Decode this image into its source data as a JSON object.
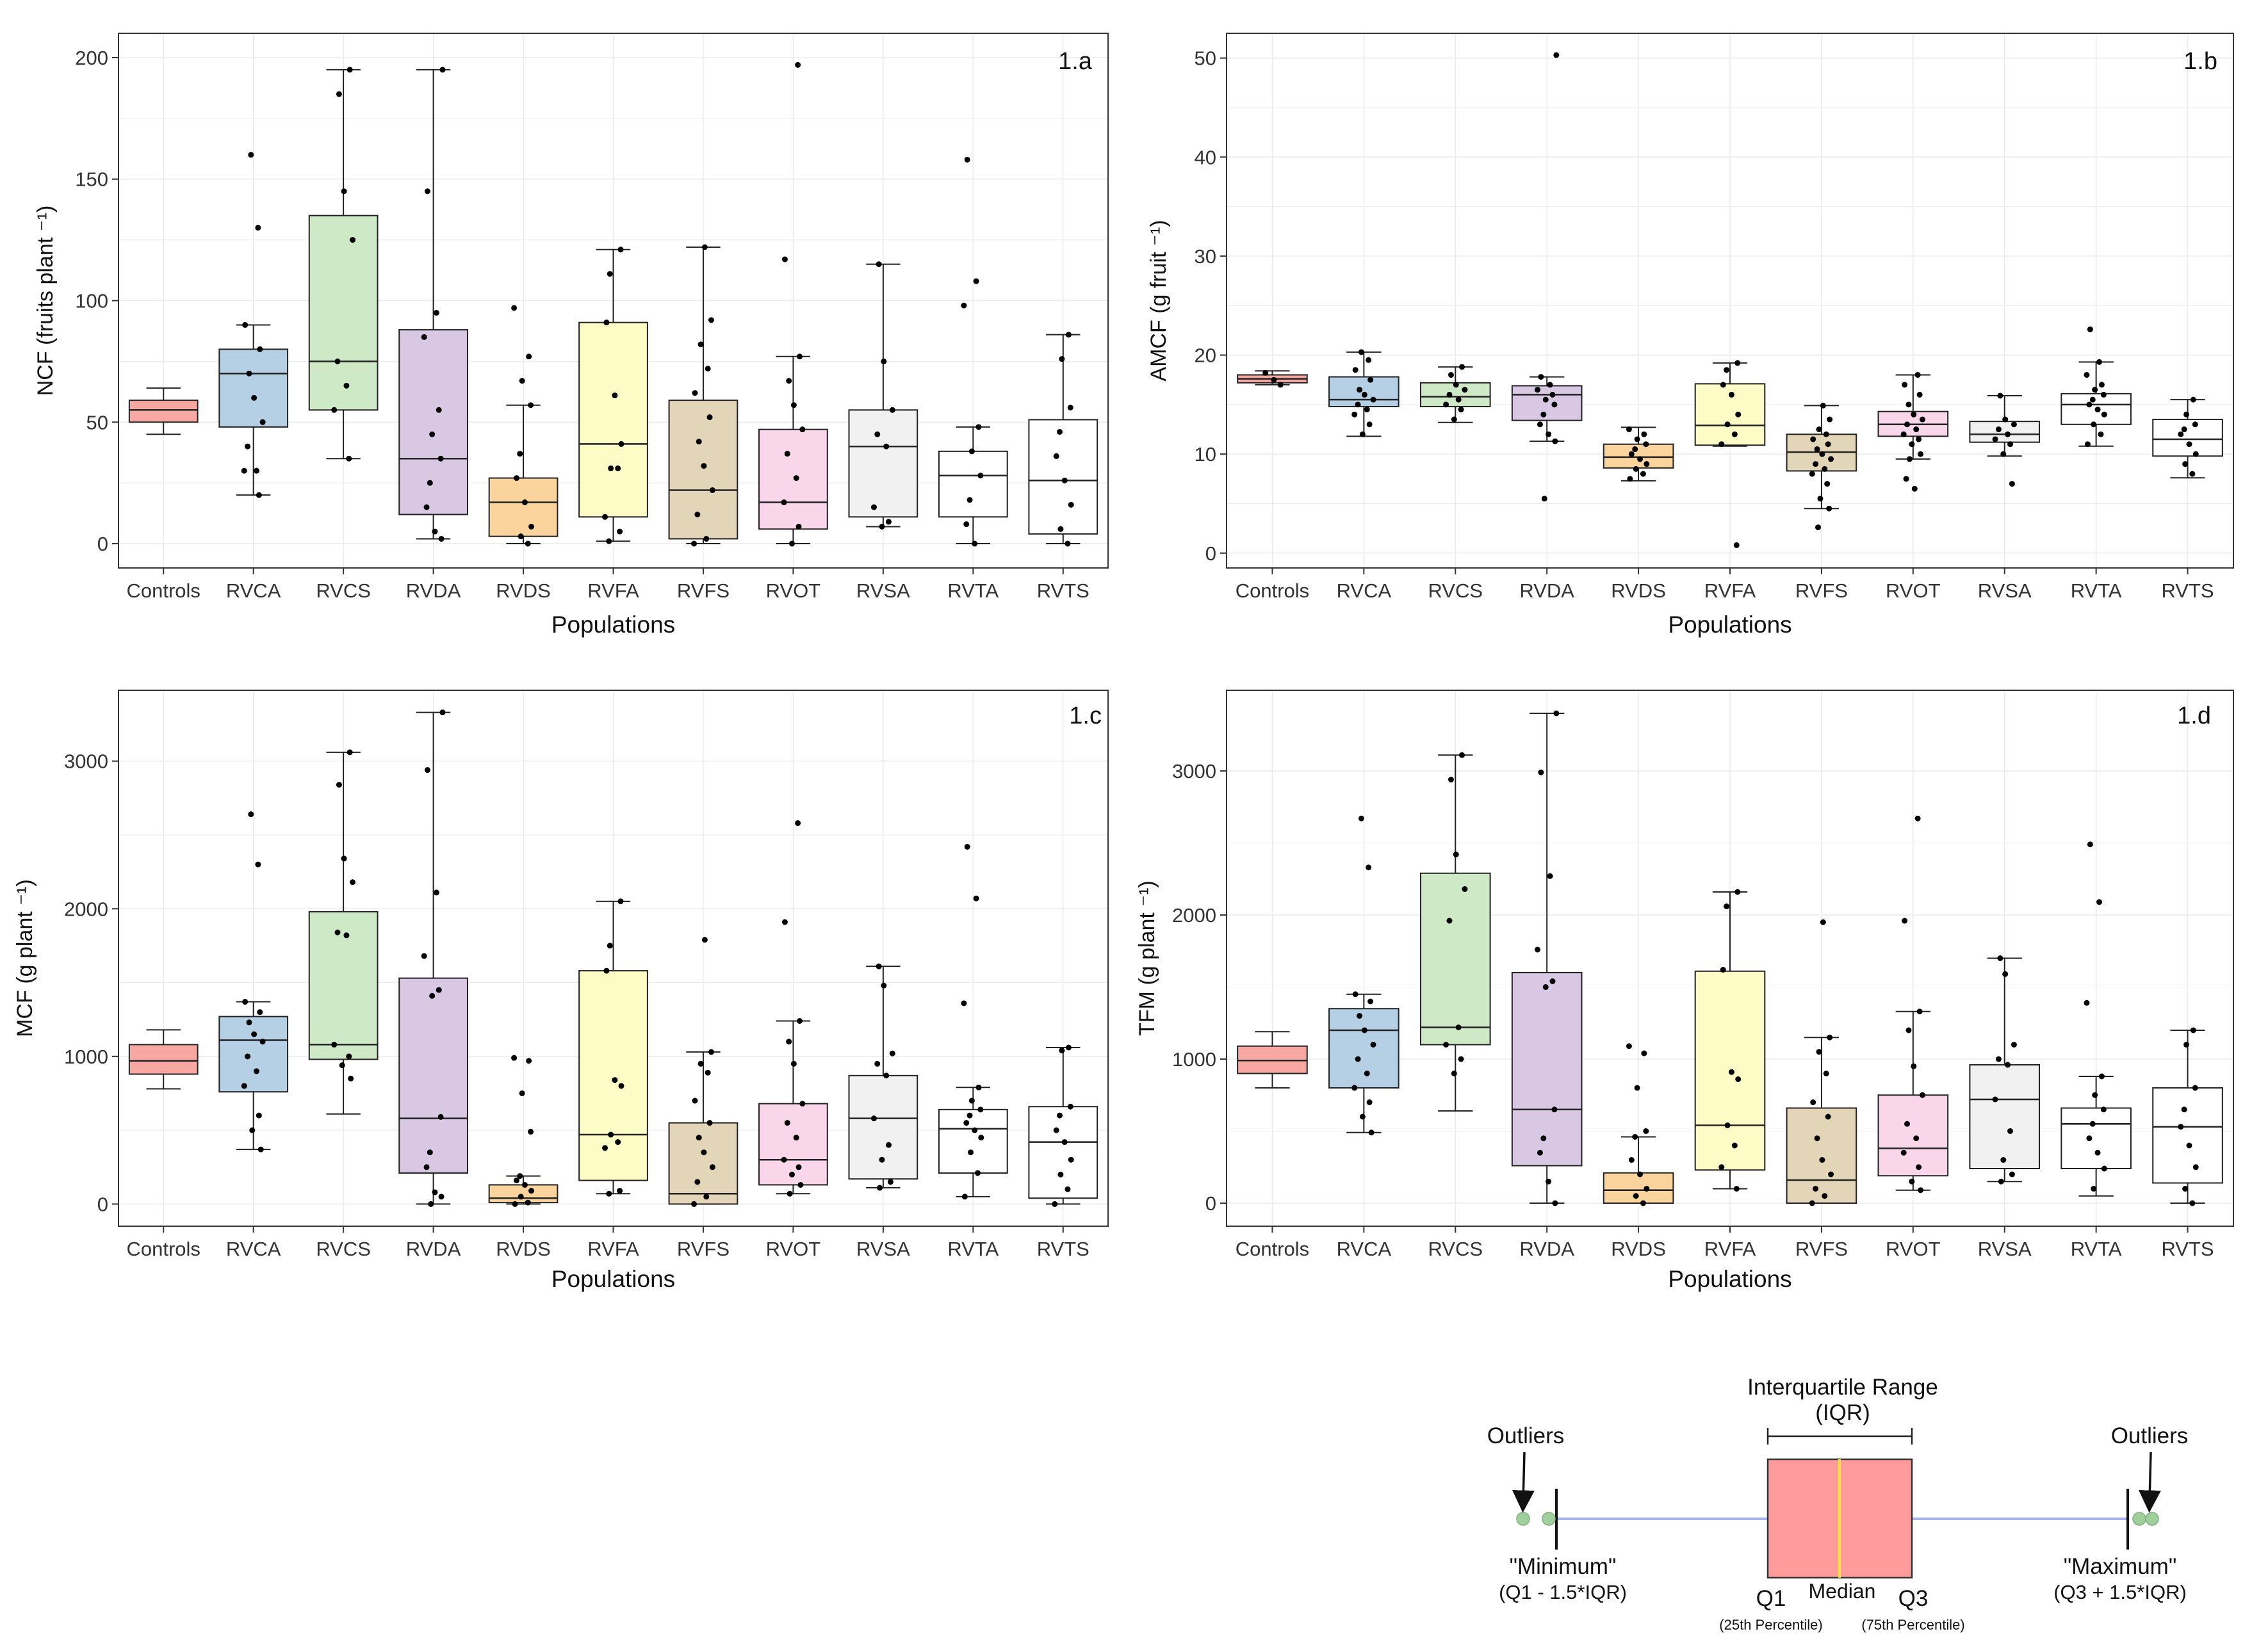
{
  "figure_title": "",
  "colors": {
    "Controls": "#f8a8a2",
    "RVCA": "#b5d0e5",
    "RVCS": "#cde9c6",
    "RVDA": "#d9c8e3",
    "RVDS": "#fbd39d",
    "RVFA": "#fdfcc7",
    "RVFS": "#e3d5b8",
    "RVOT": "#fad6ea",
    "RVSA": "#f1f1f1",
    "RVTA": "#ffffff",
    "RVTS": "#ffffff"
  },
  "chart_data": [
    {
      "id": "1.a",
      "type": "box",
      "panel_label": "1.a",
      "ylabel": "NCF (fruits plant ⁻¹)",
      "xlabel": "Populations",
      "ylim": [
        -10,
        210
      ],
      "yticks": [
        0,
        50,
        100,
        150,
        200
      ],
      "categories": [
        "Controls",
        "RVCA",
        "RVCS",
        "RVDA",
        "RVDS",
        "RVFA",
        "RVFS",
        "RVOT",
        "RVSA",
        "RVTA",
        "RVTS"
      ],
      "boxes": [
        {
          "min": 45,
          "q1": 50,
          "median": 55,
          "q3": 59,
          "max": 64,
          "points": []
        },
        {
          "min": 20,
          "q1": 48,
          "median": 70,
          "q3": 80,
          "max": 90,
          "points": [
            160,
            130,
            90,
            80,
            70,
            60,
            50,
            40,
            30,
            30,
            20
          ]
        },
        {
          "min": 35,
          "q1": 55,
          "median": 75,
          "q3": 135,
          "max": 195,
          "points": [
            195,
            185,
            145,
            125,
            75,
            65,
            55,
            35
          ]
        },
        {
          "min": 2,
          "q1": 12,
          "median": 35,
          "q3": 88,
          "max": 195,
          "points": [
            195,
            145,
            95,
            85,
            55,
            45,
            35,
            25,
            15,
            5,
            2
          ]
        },
        {
          "min": 0,
          "q1": 3,
          "median": 17,
          "q3": 27,
          "max": 57,
          "points": [
            97,
            77,
            67,
            57,
            37,
            27,
            17,
            7,
            3,
            0
          ]
        },
        {
          "min": 1,
          "q1": 11,
          "median": 41,
          "q3": 91,
          "max": 121,
          "points": [
            121,
            111,
            91,
            61,
            41,
            31,
            31,
            11,
            5,
            1
          ]
        },
        {
          "min": 0,
          "q1": 2,
          "median": 22,
          "q3": 59,
          "max": 122,
          "points": [
            122,
            92,
            82,
            72,
            62,
            52,
            42,
            32,
            22,
            12,
            2,
            0
          ]
        },
        {
          "min": 0,
          "q1": 6,
          "median": 17,
          "q3": 47,
          "max": 77,
          "points": [
            197,
            117,
            77,
            67,
            57,
            47,
            37,
            27,
            17,
            7,
            0
          ]
        },
        {
          "min": 7,
          "q1": 11,
          "median": 40,
          "q3": 55,
          "max": 115,
          "points": [
            115,
            75,
            55,
            45,
            40,
            15,
            9,
            7
          ]
        },
        {
          "min": 0,
          "q1": 11,
          "median": 28,
          "q3": 38,
          "max": 48,
          "points": [
            158,
            108,
            98,
            48,
            38,
            28,
            18,
            8,
            0
          ]
        },
        {
          "min": 0,
          "q1": 4,
          "median": 26,
          "q3": 51,
          "max": 86,
          "points": [
            86,
            76,
            56,
            46,
            36,
            26,
            16,
            6,
            0
          ]
        }
      ]
    },
    {
      "id": "1.b",
      "type": "box",
      "panel_label": "1.b",
      "ylabel": "AMCF (g fruit ⁻¹)",
      "xlabel": "Populations",
      "ylim": [
        -1.5,
        52.5
      ],
      "yticks": [
        0,
        10,
        20,
        30,
        40,
        50
      ],
      "categories": [
        "Controls",
        "RVCA",
        "RVCS",
        "RVDA",
        "RVDS",
        "RVFA",
        "RVFS",
        "RVOT",
        "RVSA",
        "RVTA",
        "RVTS"
      ],
      "boxes": [
        {
          "min": 17,
          "q1": 17.2,
          "median": 17.6,
          "q3": 18,
          "max": 18.4,
          "points": [
            18.2,
            17.5,
            17
          ]
        },
        {
          "min": 11.8,
          "q1": 14.8,
          "median": 15.5,
          "q3": 17.8,
          "max": 20.3,
          "points": [
            20.3,
            19.5,
            18.5,
            17.5,
            16.5,
            16,
            15.5,
            15,
            14.5,
            14,
            13,
            12
          ]
        },
        {
          "min": 13.2,
          "q1": 14.8,
          "median": 15.8,
          "q3": 17.2,
          "max": 18.8,
          "points": [
            18.8,
            18,
            17,
            16.5,
            16,
            15.5,
            15,
            14.5,
            13.5
          ]
        },
        {
          "min": 11.3,
          "q1": 13.4,
          "median": 16,
          "q3": 16.9,
          "max": 17.8,
          "points": [
            50.3,
            17.8,
            17,
            16.5,
            16,
            15.5,
            15,
            14,
            13,
            12,
            11.3,
            5.5
          ]
        },
        {
          "min": 7.3,
          "q1": 8.6,
          "median": 9.7,
          "q3": 11,
          "max": 12.7,
          "points": [
            12.5,
            12,
            11.5,
            11,
            10.5,
            10,
            9.5,
            9,
            8.5,
            8,
            7.5
          ]
        },
        {
          "min": 10.8,
          "q1": 10.9,
          "median": 12.9,
          "q3": 17.1,
          "max": 19.2,
          "points": [
            19.2,
            18.5,
            17,
            16,
            14,
            13,
            12,
            11,
            0.8
          ]
        },
        {
          "min": 4.5,
          "q1": 8.3,
          "median": 10.2,
          "q3": 12,
          "max": 14.9,
          "points": [
            14.9,
            13.5,
            12.5,
            12,
            11.5,
            11,
            10.5,
            10,
            9.5,
            9,
            8.5,
            8,
            7,
            5.5,
            4.5,
            2.6
          ]
        },
        {
          "min": 9.5,
          "q1": 11.8,
          "median": 13,
          "q3": 14.3,
          "max": 18,
          "points": [
            18,
            17,
            16,
            15,
            14,
            13.5,
            13,
            12.5,
            12,
            11.5,
            11,
            10,
            9.5,
            7.5,
            6.5
          ]
        },
        {
          "min": 9.8,
          "q1": 11.2,
          "median": 12,
          "q3": 13.3,
          "max": 15.9,
          "points": [
            15.9,
            13.5,
            13,
            12.5,
            12,
            11.5,
            11,
            10,
            7
          ]
        },
        {
          "min": 10.8,
          "q1": 13,
          "median": 15,
          "q3": 16.1,
          "max": 19.3,
          "points": [
            22.6,
            19.3,
            18,
            17,
            16.5,
            16,
            15.5,
            15,
            14.5,
            14,
            13,
            12,
            11
          ]
        },
        {
          "min": 7.6,
          "q1": 9.8,
          "median": 11.5,
          "q3": 13.5,
          "max": 15.5,
          "points": [
            15.5,
            14,
            13,
            12.5,
            12,
            11,
            10,
            9,
            8
          ]
        }
      ]
    },
    {
      "id": "1.c",
      "type": "box",
      "panel_label": "1.c",
      "ylabel": "MCF (g plant ⁻¹)",
      "xlabel": "Populations",
      "ylim": [
        -150,
        3480
      ],
      "yticks": [
        0,
        1000,
        2000,
        3000
      ],
      "categories": [
        "Controls",
        "RVCA",
        "RVCS",
        "RVDA",
        "RVDS",
        "RVFA",
        "RVFS",
        "RVOT",
        "RVSA",
        "RVTA",
        "RVTS"
      ],
      "boxes": [
        {
          "min": 780,
          "q1": 880,
          "median": 970,
          "q3": 1080,
          "max": 1180,
          "points": []
        },
        {
          "min": 370,
          "q1": 760,
          "median": 1110,
          "q3": 1270,
          "max": 1370,
          "points": [
            2640,
            2300,
            1370,
            1300,
            1230,
            1150,
            1100,
            1000,
            900,
            800,
            600,
            500,
            370
          ]
        },
        {
          "min": 610,
          "q1": 980,
          "median": 1080,
          "q3": 1980,
          "max": 3060,
          "points": [
            3060,
            2840,
            2340,
            2180,
            1840,
            1820,
            1080,
            1000,
            940,
            850
          ]
        },
        {
          "min": 0,
          "q1": 210,
          "median": 580,
          "q3": 1530,
          "max": 3330,
          "points": [
            3330,
            2940,
            2110,
            1680,
            1450,
            1410,
            590,
            350,
            250,
            80,
            50,
            0
          ]
        },
        {
          "min": 0,
          "q1": 10,
          "median": 40,
          "q3": 130,
          "max": 190,
          "points": [
            990,
            970,
            750,
            490,
            190,
            160,
            130,
            90,
            50,
            10,
            0
          ]
        },
        {
          "min": 70,
          "q1": 160,
          "median": 470,
          "q3": 1580,
          "max": 2050,
          "points": [
            2050,
            1750,
            1580,
            840,
            800,
            470,
            420,
            380,
            90,
            70
          ]
        },
        {
          "min": 0,
          "q1": 0,
          "median": 70,
          "q3": 550,
          "max": 1030,
          "points": [
            1790,
            1030,
            950,
            890,
            700,
            550,
            450,
            350,
            250,
            150,
            50,
            0
          ]
        },
        {
          "min": 70,
          "q1": 130,
          "median": 300,
          "q3": 680,
          "max": 1240,
          "points": [
            2580,
            1910,
            1240,
            1100,
            950,
            680,
            550,
            450,
            300,
            250,
            200,
            130,
            70
          ]
        },
        {
          "min": 110,
          "q1": 170,
          "median": 580,
          "q3": 870,
          "max": 1610,
          "points": [
            1610,
            1480,
            1020,
            950,
            870,
            580,
            400,
            300,
            150,
            110
          ]
        },
        {
          "min": 50,
          "q1": 210,
          "median": 510,
          "q3": 640,
          "max": 790,
          "points": [
            2420,
            2070,
            1360,
            790,
            700,
            640,
            600,
            550,
            500,
            450,
            350,
            210,
            50
          ]
        },
        {
          "min": 0,
          "q1": 40,
          "median": 420,
          "q3": 660,
          "max": 1060,
          "points": [
            1060,
            1040,
            660,
            600,
            500,
            420,
            300,
            200,
            100,
            0
          ]
        }
      ]
    },
    {
      "id": "1.d",
      "type": "box",
      "panel_label": "1.d",
      "ylabel": "TFM (g plant ⁻¹)",
      "xlabel": "Populations",
      "ylim": [
        -160,
        3560
      ],
      "yticks": [
        0,
        1000,
        2000,
        3000
      ],
      "categories": [
        "Controls",
        "RVCA",
        "RVCS",
        "RVDA",
        "RVDS",
        "RVFA",
        "RVFS",
        "RVOT",
        "RVSA",
        "RVTA",
        "RVTS"
      ],
      "boxes": [
        {
          "min": 800,
          "q1": 900,
          "median": 990,
          "q3": 1090,
          "max": 1190,
          "points": []
        },
        {
          "min": 490,
          "q1": 800,
          "median": 1200,
          "q3": 1350,
          "max": 1450,
          "points": [
            2670,
            2330,
            1450,
            1400,
            1300,
            1200,
            1100,
            1000,
            900,
            800,
            700,
            600,
            490
          ]
        },
        {
          "min": 640,
          "q1": 1100,
          "median": 1220,
          "q3": 2290,
          "max": 3110,
          "points": [
            3110,
            2940,
            2420,
            2180,
            1960,
            1220,
            1100,
            1000,
            900
          ]
        },
        {
          "min": 0,
          "q1": 260,
          "median": 650,
          "q3": 1600,
          "max": 3400,
          "points": [
            3400,
            2990,
            2270,
            1760,
            1540,
            1500,
            650,
            450,
            350,
            150,
            0
          ]
        },
        {
          "min": 0,
          "q1": 0,
          "median": 90,
          "q3": 210,
          "max": 460,
          "points": [
            1090,
            1040,
            800,
            500,
            460,
            300,
            200,
            100,
            50,
            0
          ]
        },
        {
          "min": 100,
          "q1": 230,
          "median": 540,
          "q3": 1610,
          "max": 2160,
          "points": [
            2160,
            2060,
            1620,
            910,
            860,
            540,
            400,
            250,
            100
          ]
        },
        {
          "min": 0,
          "q1": 0,
          "median": 160,
          "q3": 660,
          "max": 1150,
          "points": [
            1950,
            1150,
            1050,
            900,
            700,
            600,
            450,
            300,
            200,
            100,
            50,
            0
          ]
        },
        {
          "min": 90,
          "q1": 190,
          "median": 380,
          "q3": 750,
          "max": 1330,
          "points": [
            2670,
            1960,
            1330,
            1200,
            950,
            750,
            550,
            450,
            350,
            250,
            150,
            90
          ]
        },
        {
          "min": 150,
          "q1": 240,
          "median": 720,
          "q3": 960,
          "max": 1700,
          "points": [
            1700,
            1590,
            1100,
            1000,
            960,
            720,
            500,
            300,
            200,
            150
          ]
        },
        {
          "min": 50,
          "q1": 240,
          "median": 550,
          "q3": 660,
          "max": 880,
          "points": [
            2490,
            2090,
            1390,
            880,
            750,
            650,
            550,
            450,
            350,
            240,
            100
          ]
        },
        {
          "min": 0,
          "q1": 140,
          "median": 530,
          "q3": 800,
          "max": 1200,
          "points": [
            1200,
            1100,
            800,
            650,
            530,
            400,
            250,
            100,
            0
          ]
        }
      ]
    }
  ],
  "legend": {
    "title_line1": "Interquartile Range",
    "title_line2": "(IQR)",
    "outliers_left": "Outliers",
    "outliers_right": "Outliers",
    "minimum_label": "\"Minimum\"",
    "minimum_formula": "(Q1 - 1.5*IQR)",
    "maximum_label": "\"Maximum\"",
    "maximum_formula": "(Q3 + 1.5*IQR)",
    "q1_label": "Q1",
    "q1_sub": "(25th Percentile)",
    "median_label": "Median",
    "q3_label": "Q3",
    "q3_sub": "(75th Percentile)",
    "box_color": "#ff9b9b",
    "median_color": "#f4e23c",
    "whisker_color": "#a6b4ea",
    "outlier_color": "#9fcf9b"
  }
}
